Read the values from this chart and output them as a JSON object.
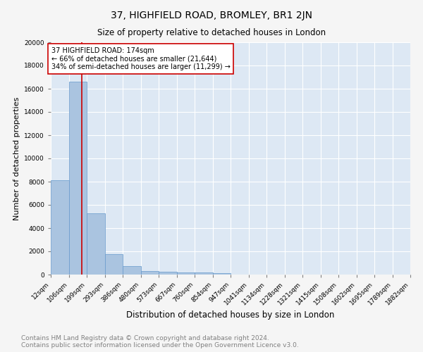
{
  "title": "37, HIGHFIELD ROAD, BROMLEY, BR1 2JN",
  "subtitle": "Size of property relative to detached houses in London",
  "xlabel": "Distribution of detached houses by size in London",
  "ylabel": "Number of detached properties",
  "bin_edges": [
    12,
    106,
    199,
    293,
    386,
    480,
    573,
    667,
    760,
    854,
    947,
    1041,
    1134,
    1228,
    1321,
    1415,
    1508,
    1602,
    1695,
    1789,
    1882
  ],
  "bar_heights": [
    8100,
    16600,
    5300,
    1750,
    700,
    300,
    230,
    200,
    170,
    130,
    0,
    0,
    0,
    0,
    0,
    0,
    0,
    0,
    0,
    0
  ],
  "bar_color": "#aac4e0",
  "bar_edge_color": "#6699cc",
  "property_size": 174,
  "vline_color": "#cc0000",
  "annotation_text": "37 HIGHFIELD ROAD: 174sqm\n← 66% of detached houses are smaller (21,644)\n34% of semi-detached houses are larger (11,299) →",
  "annotation_box_color": "#ffffff",
  "annotation_box_edge": "#cc0000",
  "ylim": [
    0,
    20000
  ],
  "yticks": [
    0,
    2000,
    4000,
    6000,
    8000,
    10000,
    12000,
    14000,
    16000,
    18000,
    20000
  ],
  "background_color": "#dde8f4",
  "fig_background_color": "#f5f5f5",
  "footer_text": "Contains HM Land Registry data © Crown copyright and database right 2024.\nContains public sector information licensed under the Open Government Licence v3.0.",
  "title_fontsize": 10,
  "subtitle_fontsize": 8.5,
  "xlabel_fontsize": 8.5,
  "ylabel_fontsize": 8,
  "footer_fontsize": 6.5,
  "tick_label_fontsize": 6.5
}
